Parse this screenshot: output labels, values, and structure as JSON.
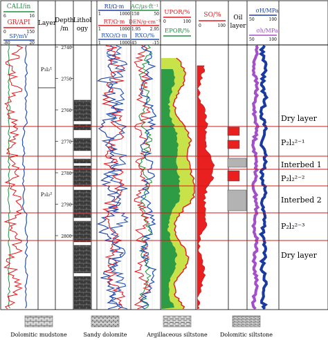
{
  "colors": {
    "green": "#1a8f3c",
    "red": "#e8151b",
    "blue": "#1f4fb5",
    "darkblue": "#1a3aa0",
    "purple": "#a24fc9",
    "lightgreen": "#c8e24a",
    "darkgreen": "#2e9b45",
    "lightred": "#f4a09a",
    "oilred": "#e82020",
    "gray": "#b3b3b3",
    "darkred": "#d01818",
    "black": "#000000"
  },
  "headers": {
    "cali": {
      "label": "CALI/in",
      "min": "6",
      "max": "16"
    },
    "gr": {
      "label": "GR/API",
      "min": "0",
      "max": "150"
    },
    "sp": {
      "label": "SP/mV",
      "min": "-80",
      "max": "20"
    },
    "layer": "Layer",
    "depth_1": "Depth",
    "depth_2": "/m",
    "litho_1": "Lithol",
    "litho_2": "ogy",
    "ri": {
      "label": "RI/Ω·m",
      "min": "1",
      "max": "1000"
    },
    "rt": {
      "label": "RT/Ω·m",
      "min": "1",
      "max": "1000"
    },
    "rxo": {
      "label": "RXO/Ω·m",
      "min": "1",
      "max": "1000"
    },
    "ac": {
      "label": "AC/μs·ft⁻¹",
      "min": "150",
      "max": "50"
    },
    "den": {
      "label": "DEN/g·cm⁻³",
      "min": "1.95",
      "max": "2.95"
    },
    "rxo2": {
      "label": "RXO/%",
      "min": "45",
      "max": "-15"
    },
    "upor": {
      "label": "UPOR/%",
      "min": "0",
      "max": "100"
    },
    "epor": {
      "label": "EPOR/%"
    },
    "so": {
      "label": "SO/%",
      "min": "0",
      "max": "100"
    },
    "oil_1": "Oil",
    "oil_2": "layer",
    "sh": {
      "label": "σH/MPa",
      "min": "50",
      "max": "100"
    },
    "sh2": {
      "label": "σh/MPa",
      "min": "50",
      "max": "100"
    }
  },
  "layer_labels": {
    "upper": "P₃l₂¹",
    "lower": "P₃l₂²"
  },
  "depth_ticks": [
    "2740",
    "2750",
    "2760",
    "2770",
    "2780",
    "2790",
    "2800"
  ],
  "zones": [
    {
      "text": "Dry layer"
    },
    {
      "text": "P₂l₂²⁻¹"
    },
    {
      "text": "Interbed 1"
    },
    {
      "text": "P₂l₂²⁻²"
    },
    {
      "text": "Interbed 2"
    },
    {
      "text": "P₂l₂²⁻³"
    },
    {
      "text": "Dry layer"
    }
  ],
  "legend": [
    {
      "label": "Dolomitic mudstone",
      "pattern": "brick"
    },
    {
      "label": "Sandy dolomite",
      "pattern": "dotted"
    },
    {
      "label": "Argillaceous siltstone",
      "pattern": "dashed"
    },
    {
      "label": "Dolomitic siltstone",
      "pattern": "fine"
    }
  ]
}
